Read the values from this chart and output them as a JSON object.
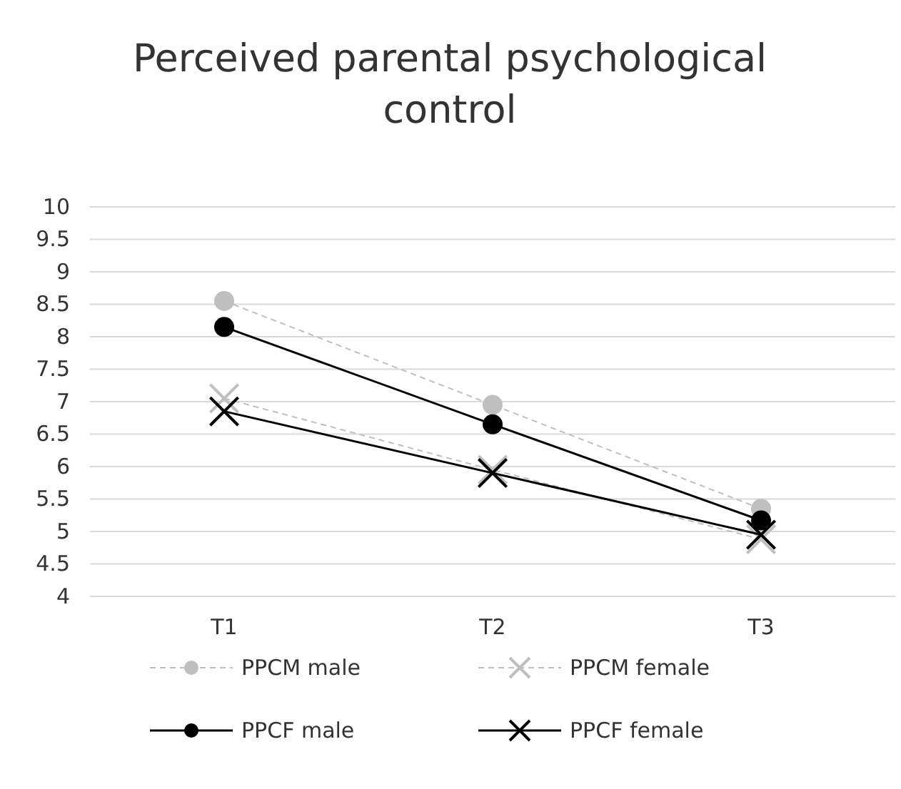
{
  "chart_data": {
    "type": "line",
    "title": "Perceived parental psychological control",
    "categories": [
      "T1",
      "T2",
      "T3"
    ],
    "series": [
      {
        "name": "PPCM male",
        "color": "#bfbfbf",
        "values": [
          8.55,
          6.95,
          5.35
        ],
        "marker": "circle",
        "line_style": "dashed"
      },
      {
        "name": "PPCM female",
        "color": "#bfbfbf",
        "values": [
          7.05,
          5.95,
          4.88
        ],
        "marker": "cross",
        "line_style": "dashed"
      },
      {
        "name": "PPCF male",
        "color": "#000000",
        "values": [
          8.15,
          6.65,
          5.17
        ],
        "marker": "circle",
        "line_style": "solid"
      },
      {
        "name": "PPCF female",
        "color": "#000000",
        "values": [
          6.85,
          5.9,
          4.95
        ],
        "marker": "cross",
        "line_style": "solid"
      }
    ],
    "ylim": [
      4,
      10
    ],
    "yticks": [
      4,
      4.5,
      5,
      5.5,
      6,
      6.5,
      7,
      7.5,
      8,
      8.5,
      9,
      9.5,
      10
    ],
    "grid": "y",
    "legend": "bottom"
  }
}
